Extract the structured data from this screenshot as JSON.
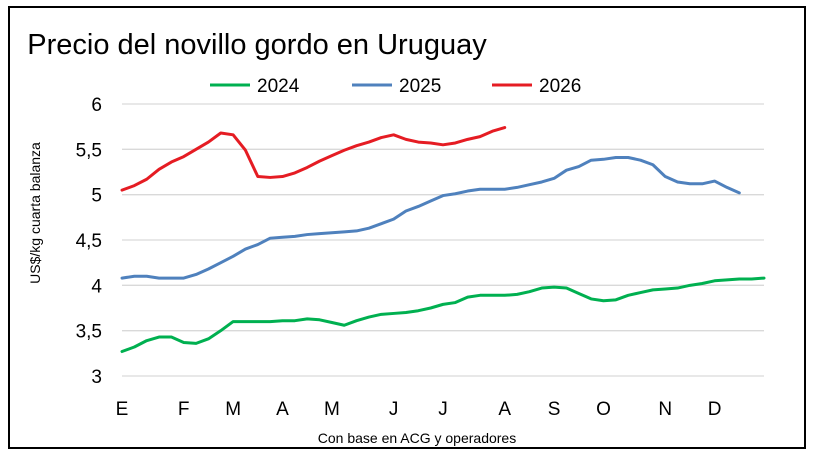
{
  "chart_data": {
    "type": "line",
    "title": "Precio del novillo gordo en Uruguay",
    "ylabel": "US$/kg cuarta balanza",
    "source_note": "Con base en ACG y operadores",
    "ylim": [
      3,
      6
    ],
    "yticks": [
      "3",
      "3,5",
      "4",
      "4,5",
      "5",
      "5,5",
      "6"
    ],
    "ytick_values": [
      3,
      3.5,
      4,
      4.5,
      5,
      5.5,
      6
    ],
    "xlim": [
      0,
      52
    ],
    "xticks": [
      "E",
      "F",
      "M",
      "A",
      "M",
      "J",
      "J",
      "A",
      "S",
      "O",
      "N",
      "D"
    ],
    "xtick_weeks": [
      0,
      5,
      9,
      13,
      17,
      22,
      26,
      31,
      35,
      39,
      44,
      48
    ],
    "grid": true,
    "legend_position": "top",
    "series": [
      {
        "name": "2024",
        "color": "#00b050",
        "x": [
          0,
          1,
          2,
          3,
          4,
          5,
          6,
          7,
          8,
          9,
          10,
          11,
          12,
          13,
          14,
          15,
          16,
          17,
          18,
          19,
          20,
          21,
          22,
          23,
          24,
          25,
          26,
          27,
          28,
          29,
          30,
          31,
          32,
          33,
          34,
          35,
          36,
          37,
          38,
          39,
          40,
          41,
          42,
          43,
          44,
          45,
          46,
          47,
          48,
          49,
          50,
          51,
          52
        ],
        "values": [
          3.27,
          3.32,
          3.39,
          3.43,
          3.43,
          3.37,
          3.36,
          3.41,
          3.5,
          3.6,
          3.6,
          3.6,
          3.6,
          3.61,
          3.61,
          3.63,
          3.62,
          3.59,
          3.56,
          3.61,
          3.65,
          3.68,
          3.69,
          3.7,
          3.72,
          3.75,
          3.79,
          3.81,
          3.87,
          3.89,
          3.89,
          3.89,
          3.9,
          3.93,
          3.97,
          3.98,
          3.97,
          3.91,
          3.85,
          3.83,
          3.84,
          3.89,
          3.92,
          3.95,
          3.96,
          3.97,
          4.0,
          4.02,
          4.05,
          4.06,
          4.07,
          4.07,
          4.08
        ]
      },
      {
        "name": "2025",
        "color": "#4f81bd",
        "x": [
          0,
          1,
          2,
          3,
          4,
          5,
          6,
          7,
          8,
          9,
          10,
          11,
          12,
          13,
          14,
          15,
          16,
          17,
          18,
          19,
          20,
          21,
          22,
          23,
          24,
          25,
          26,
          27,
          28,
          29,
          30,
          31,
          32,
          33,
          34,
          35,
          36,
          37,
          38,
          39,
          40,
          41,
          42,
          43,
          44,
          45,
          46,
          47,
          48,
          49,
          50
        ],
        "values": [
          4.08,
          4.1,
          4.1,
          4.08,
          4.08,
          4.08,
          4.12,
          4.18,
          4.25,
          4.32,
          4.4,
          4.45,
          4.52,
          4.53,
          4.54,
          4.56,
          4.57,
          4.58,
          4.59,
          4.6,
          4.63,
          4.68,
          4.73,
          4.82,
          4.87,
          4.93,
          4.99,
          5.01,
          5.04,
          5.06,
          5.06,
          5.06,
          5.08,
          5.11,
          5.14,
          5.18,
          5.27,
          5.31,
          5.38,
          5.39,
          5.41,
          5.41,
          5.38,
          5.33,
          5.2,
          5.14,
          5.12,
          5.12,
          5.15,
          5.08,
          5.02
        ]
      },
      {
        "name": "2026",
        "color": "#e51c23",
        "x": [
          0,
          1,
          2,
          3,
          4,
          5,
          6,
          7,
          8,
          9,
          10,
          11,
          12,
          13,
          14,
          15,
          16,
          17,
          18,
          19,
          20,
          21,
          22,
          23,
          24,
          25,
          26,
          27,
          28,
          29,
          30,
          31
        ],
        "values": [
          5.05,
          5.1,
          5.17,
          5.28,
          5.36,
          5.42,
          5.5,
          5.58,
          5.68,
          5.66,
          5.49,
          5.2,
          5.19,
          5.2,
          5.24,
          5.3,
          5.37,
          5.43,
          5.49,
          5.54,
          5.58,
          5.63,
          5.66,
          5.61,
          5.58,
          5.57,
          5.55,
          5.57,
          5.61,
          5.64,
          5.7,
          5.74
        ]
      }
    ]
  }
}
